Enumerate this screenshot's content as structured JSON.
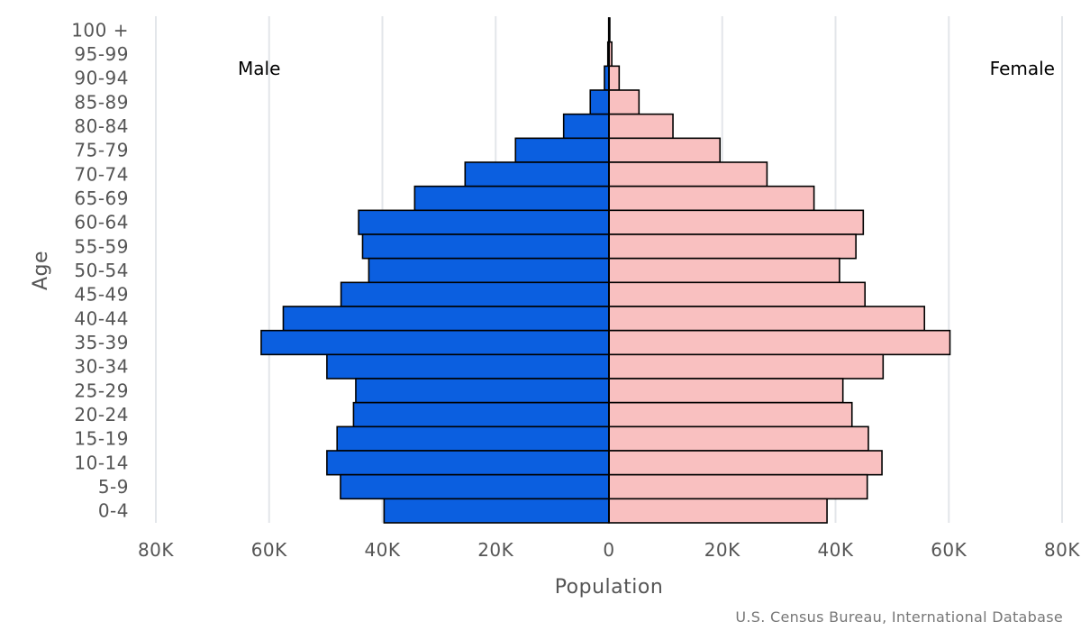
{
  "chart_data": {
    "type": "bar",
    "orientation": "horizontal",
    "subtype": "population-pyramid",
    "categories": [
      "100 +",
      "95-99",
      "90-94",
      "85-89",
      "80-84",
      "75-79",
      "70-74",
      "65-69",
      "60-64",
      "55-59",
      "50-54",
      "45-49",
      "40-44",
      "35-39",
      "30-34",
      "25-29",
      "20-24",
      "15-19",
      "10-14",
      "5-9",
      "0-4"
    ],
    "series": [
      {
        "name": "Male",
        "color": "#0b5fe0",
        "values": [
          50,
          200,
          800,
          3300,
          8000,
          16500,
          25400,
          34300,
          44200,
          43500,
          42400,
          47300,
          57500,
          61400,
          49800,
          44700,
          45100,
          48000,
          49800,
          47400,
          39700
        ]
      },
      {
        "name": "Female",
        "color": "#f9c0c0",
        "values": [
          150,
          500,
          1800,
          5300,
          11300,
          19600,
          27900,
          36200,
          44900,
          43600,
          40700,
          45200,
          55700,
          60200,
          48400,
          41300,
          42900,
          45800,
          48200,
          45600,
          38500
        ]
      }
    ],
    "x_ticks": [
      "80K",
      "60K",
      "40K",
      "20K",
      "0",
      "20K",
      "40K",
      "60K",
      "80K"
    ],
    "xlim": [
      -80000,
      80000
    ],
    "xlabel": "Population",
    "ylabel": "Age",
    "grid": true,
    "left_label": "Male",
    "right_label": "Female",
    "credits": "U.S. Census Bureau, International Database"
  }
}
